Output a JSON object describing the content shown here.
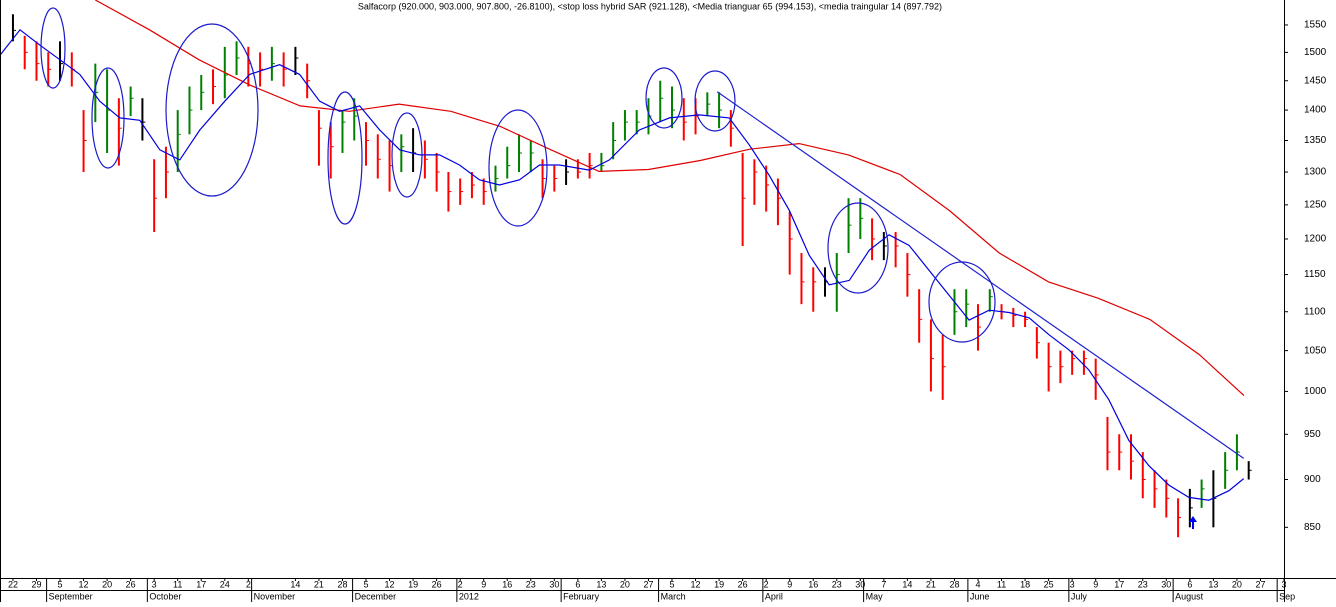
{
  "chart_data": {
    "type": "ohlc",
    "title": "Salfacorp (920.000, 903.000, 907.800, -26.8100), <stop loss hybrid SAR (921.128), <Media trianguar 65 (994.153), <media traingular 14 (897.792)",
    "log_y": true,
    "ylim": [
      800,
      1597
    ],
    "yticks": [
      850,
      900,
      950,
      1000,
      1050,
      1100,
      1150,
      1200,
      1250,
      1300,
      1350,
      1400,
      1450,
      1500,
      1550
    ],
    "xlim": [
      -0.55,
      54
    ],
    "xticks": [
      {
        "value": 0,
        "label": "22"
      },
      {
        "value": 1,
        "label": "29"
      },
      {
        "value": 2,
        "label": "5"
      },
      {
        "value": 3,
        "label": "12"
      },
      {
        "value": 4,
        "label": "20"
      },
      {
        "value": 5,
        "label": "26"
      },
      {
        "value": 6,
        "label": "3"
      },
      {
        "value": 7,
        "label": "11"
      },
      {
        "value": 8,
        "label": "17"
      },
      {
        "value": 9,
        "label": "24"
      },
      {
        "value": 10,
        "label": "2"
      },
      {
        "value": 12,
        "label": "14"
      },
      {
        "value": 13,
        "label": "21"
      },
      {
        "value": 14,
        "label": "28"
      },
      {
        "value": 15,
        "label": "5"
      },
      {
        "value": 16,
        "label": "12"
      },
      {
        "value": 17,
        "label": "19"
      },
      {
        "value": 18,
        "label": "26"
      },
      {
        "value": 19,
        "label": "2"
      },
      {
        "value": 20,
        "label": "9"
      },
      {
        "value": 21,
        "label": "16"
      },
      {
        "value": 22,
        "label": "23"
      },
      {
        "value": 23,
        "label": "30"
      },
      {
        "value": 24,
        "label": "6"
      },
      {
        "value": 25,
        "label": "13"
      },
      {
        "value": 26,
        "label": "20"
      },
      {
        "value": 27,
        "label": "27"
      },
      {
        "value": 28,
        "label": "5"
      },
      {
        "value": 29,
        "label": "12"
      },
      {
        "value": 30,
        "label": "19"
      },
      {
        "value": 31,
        "label": "26"
      },
      {
        "value": 32,
        "label": "2"
      },
      {
        "value": 33,
        "label": "9"
      },
      {
        "value": 34,
        "label": "16"
      },
      {
        "value": 35,
        "label": "23"
      },
      {
        "value": 36,
        "label": "30"
      },
      {
        "value": 37,
        "label": "7"
      },
      {
        "value": 38,
        "label": "14"
      },
      {
        "value": 39,
        "label": "21"
      },
      {
        "value": 40,
        "label": "28"
      },
      {
        "value": 41,
        "label": "4"
      },
      {
        "value": 42,
        "label": "11"
      },
      {
        "value": 43,
        "label": "18"
      },
      {
        "value": 44,
        "label": "25"
      },
      {
        "value": 45,
        "label": "3"
      },
      {
        "value": 46,
        "label": "9"
      },
      {
        "value": 47,
        "label": "17"
      },
      {
        "value": 48,
        "label": "23"
      },
      {
        "value": 49,
        "label": "30"
      },
      {
        "value": 50,
        "label": "6"
      },
      {
        "value": 51,
        "label": "13"
      },
      {
        "value": 52,
        "label": "20"
      },
      {
        "value": 53,
        "label": "27"
      },
      {
        "value": 54,
        "label": "3"
      }
    ],
    "month_ticks": [
      {
        "value": 1.43,
        "label": "September"
      },
      {
        "value": 5.71,
        "label": "October"
      },
      {
        "value": 10.14,
        "label": "November"
      },
      {
        "value": 14.43,
        "label": "December"
      },
      {
        "value": 18.86,
        "label": "2012"
      },
      {
        "value": 23.29,
        "label": "February"
      },
      {
        "value": 27.43,
        "label": "March"
      },
      {
        "value": 31.86,
        "label": "April"
      },
      {
        "value": 36.14,
        "label": "May"
      },
      {
        "value": 40.57,
        "label": "June"
      },
      {
        "value": 44.86,
        "label": "July"
      },
      {
        "value": 49.29,
        "label": "August"
      },
      {
        "value": 53.71,
        "label": "Sep"
      }
    ],
    "x": [
      0,
      0.5,
      1,
      1.5,
      2,
      2.5,
      3,
      3.5,
      4,
      4.5,
      5,
      5.5,
      6,
      6.5,
      7,
      7.5,
      8,
      8.5,
      9,
      9.5,
      10,
      10.5,
      11,
      11.5,
      12,
      12.5,
      13,
      13.5,
      14,
      14.5,
      15,
      15.5,
      16,
      16.5,
      17,
      17.5,
      18,
      18.5,
      19,
      19.5,
      20,
      20.5,
      21,
      21.5,
      22,
      22.5,
      23,
      23.5,
      24,
      24.5,
      25,
      25.5,
      26,
      26.5,
      27,
      27.5,
      28,
      28.5,
      29,
      29.5,
      30,
      30.5,
      31,
      31.5,
      32,
      32.5,
      33,
      33.5,
      34,
      34.5,
      35,
      35.5,
      36,
      36.5,
      37,
      37.5,
      38,
      38.5,
      39,
      39.5,
      40,
      40.5,
      41,
      41.5,
      42,
      42.5,
      43,
      43.5,
      44,
      44.5,
      45,
      45.5,
      46,
      46.5,
      47,
      47.5,
      48,
      48.5,
      49,
      49.5,
      50,
      50.5,
      51,
      51.5,
      52,
      52.5
    ],
    "high": [
      1570,
      1530,
      1520,
      1500,
      1520,
      1500,
      1400,
      1480,
      1470,
      1420,
      1440,
      1420,
      1320,
      1340,
      1400,
      1440,
      1460,
      1470,
      1510,
      1520,
      1510,
      1500,
      1510,
      1500,
      1510,
      1480,
      1400,
      1380,
      1400,
      1420,
      1380,
      1360,
      1350,
      1360,
      1370,
      1350,
      1330,
      1300,
      1290,
      1300,
      1290,
      1310,
      1340,
      1360,
      1350,
      1320,
      1310,
      1320,
      1320,
      1330,
      1330,
      1380,
      1400,
      1400,
      1420,
      1450,
      1440,
      1420,
      1420,
      1430,
      1430,
      1400,
      1330,
      1320,
      1310,
      1290,
      1240,
      1180,
      1160,
      1160,
      1180,
      1260,
      1260,
      1230,
      1210,
      1210,
      1180,
      1130,
      1090,
      1070,
      1130,
      1130,
      1110,
      1130,
      1110,
      1105,
      1100,
      1080,
      1060,
      1050,
      1050,
      1050,
      1040,
      970,
      950,
      950,
      930,
      910,
      900,
      880,
      890,
      900,
      910,
      930,
      950,
      920
    ],
    "low": [
      1520,
      1470,
      1450,
      1440,
      1450,
      1440,
      1300,
      1380,
      1330,
      1310,
      1390,
      1350,
      1210,
      1260,
      1300,
      1360,
      1400,
      1410,
      1420,
      1460,
      1440,
      1440,
      1450,
      1440,
      1460,
      1420,
      1310,
      1290,
      1330,
      1350,
      1310,
      1290,
      1270,
      1300,
      1300,
      1290,
      1270,
      1240,
      1250,
      1260,
      1250,
      1270,
      1290,
      1300,
      1300,
      1260,
      1270,
      1280,
      1290,
      1290,
      1300,
      1320,
      1350,
      1360,
      1360,
      1380,
      1370,
      1350,
      1360,
      1390,
      1370,
      1340,
      1190,
      1250,
      1240,
      1220,
      1150,
      1110,
      1100,
      1120,
      1100,
      1180,
      1200,
      1170,
      1170,
      1160,
      1120,
      1060,
      1000,
      990,
      1070,
      1080,
      1050,
      1100,
      1090,
      1080,
      1080,
      1040,
      1000,
      1010,
      1020,
      1020,
      990,
      910,
      910,
      900,
      880,
      870,
      860,
      840,
      850,
      870,
      850,
      890,
      910,
      900
    ],
    "close": [
      1540,
      1500,
      1480,
      1470,
      1480,
      1470,
      1350,
      1430,
      1400,
      1370,
      1420,
      1380,
      1260,
      1300,
      1360,
      1400,
      1430,
      1440,
      1460,
      1490,
      1480,
      1470,
      1480,
      1470,
      1490,
      1450,
      1370,
      1340,
      1380,
      1390,
      1350,
      1320,
      1310,
      1340,
      1330,
      1320,
      1300,
      1270,
      1270,
      1280,
      1270,
      1290,
      1310,
      1330,
      1330,
      1290,
      1290,
      1300,
      1300,
      1310,
      1310,
      1350,
      1380,
      1380,
      1390,
      1420,
      1400,
      1380,
      1390,
      1410,
      1400,
      1370,
      1260,
      1300,
      1280,
      1260,
      1200,
      1140,
      1140,
      1140,
      1150,
      1220,
      1230,
      1200,
      1190,
      1190,
      1150,
      1090,
      1040,
      1030,
      1100,
      1110,
      1080,
      1120,
      1100,
      1095,
      1090,
      1060,
      1030,
      1030,
      1040,
      1040,
      1020,
      930,
      930,
      920,
      900,
      890,
      880,
      860,
      870,
      890,
      880,
      910,
      930,
      910
    ],
    "colors": [
      "#000000",
      "#ff0000",
      "#ff0000",
      "#ff0000",
      "#000000",
      "#ff0000",
      "#ff0000",
      "#008000",
      "#008000",
      "#ff0000",
      "#008000",
      "#000000",
      "#ff0000",
      "#ff0000",
      "#008000",
      "#008000",
      "#008000",
      "#ff0000",
      "#008000",
      "#008000",
      "#ff0000",
      "#ff0000",
      "#008000",
      "#ff0000",
      "#000000",
      "#ff0000",
      "#ff0000",
      "#ff0000",
      "#008000",
      "#008000",
      "#ff0000",
      "#ff0000",
      "#ff0000",
      "#008000",
      "#000000",
      "#ff0000",
      "#ff0000",
      "#ff0000",
      "#ff0000",
      "#ff0000",
      "#ff0000",
      "#008000",
      "#008000",
      "#008000",
      "#008000",
      "#ff0000",
      "#ff0000",
      "#000000",
      "#ff0000",
      "#ff0000",
      "#008000",
      "#008000",
      "#008000",
      "#008000",
      "#008000",
      "#008000",
      "#008000",
      "#ff0000",
      "#ff0000",
      "#008000",
      "#008000",
      "#ff0000",
      "#ff0000",
      "#ff0000",
      "#ff0000",
      "#ff0000",
      "#ff0000",
      "#ff0000",
      "#ff0000",
      "#000000",
      "#008000",
      "#008000",
      "#008000",
      "#ff0000",
      "#000000",
      "#ff0000",
      "#ff0000",
      "#ff0000",
      "#ff0000",
      "#ff0000",
      "#008000",
      "#008000",
      "#ff0000",
      "#008000",
      "#ff0000",
      "#ff0000",
      "#ff0000",
      "#ff0000",
      "#ff0000",
      "#ff0000",
      "#ff0000",
      "#ff0000",
      "#ff0000",
      "#ff0000",
      "#ff0000",
      "#ff0000",
      "#ff0000",
      "#ff0000",
      "#ff0000",
      "#ff0000",
      "#000000",
      "#008000",
      "#000000",
      "#008000",
      "#008000",
      "#000000"
    ],
    "lines": [
      {
        "color": "#e00000",
        "x": [
          3.5,
          5.8,
          7.9,
          10.1,
          12.2,
          14.3,
          16.4,
          18.6,
          20.7,
          22.8,
          24.9,
          27.0,
          29.2,
          31.3,
          33.4,
          35.5,
          37.7,
          39.8,
          41.9,
          44.0,
          46.1,
          48.3,
          50.4,
          52.3
        ],
        "values": [
          1597,
          1541,
          1487,
          1442,
          1407,
          1398,
          1410,
          1398,
          1373,
          1336,
          1301,
          1304,
          1318,
          1336,
          1345,
          1327,
          1296,
          1241,
          1180,
          1140,
          1118,
          1090,
          1045,
          995
        ]
      },
      {
        "color": "#0000e0",
        "x": [
          -0.55,
          0.3,
          1.15,
          1.99,
          2.84,
          3.69,
          4.54,
          5.39,
          6.24,
          7.09,
          7.94,
          9.0,
          10.06,
          11.33,
          12.18,
          13.03,
          13.88,
          14.73,
          15.58,
          16.43,
          17.28,
          18.12,
          18.97,
          19.82,
          20.67,
          21.52,
          22.37,
          23.22,
          24.49,
          25.34,
          26.61,
          27.89,
          29.16,
          30.43,
          31.28,
          32.13,
          32.98,
          33.83,
          34.68,
          35.53,
          36.38,
          37.22,
          38.07,
          38.92,
          39.77,
          40.62,
          41.47,
          42.32,
          43.17,
          44.02,
          44.86,
          45.71,
          46.56,
          47.41,
          48.26,
          49.11,
          49.96,
          50.81,
          51.66,
          52.29
        ],
        "values": [
          1495,
          1541,
          1513,
          1487,
          1461,
          1415,
          1387,
          1383,
          1335,
          1319,
          1367,
          1415,
          1461,
          1478,
          1461,
          1415,
          1398,
          1407,
          1367,
          1335,
          1327,
          1327,
          1311,
          1288,
          1280,
          1288,
          1311,
          1311,
          1303,
          1319,
          1367,
          1387,
          1392,
          1387,
          1343,
          1295,
          1242,
          1177,
          1136,
          1142,
          1184,
          1206,
          1191,
          1156,
          1122,
          1089,
          1102,
          1099,
          1092,
          1070,
          1051,
          1026,
          990,
          943,
          915,
          894,
          881,
          878,
          888,
          901
        ]
      },
      {
        "color": "#2020d0",
        "x": [
          29.92,
          52.29
        ],
        "values": [
          1431,
          923
        ]
      }
    ]
  }
}
